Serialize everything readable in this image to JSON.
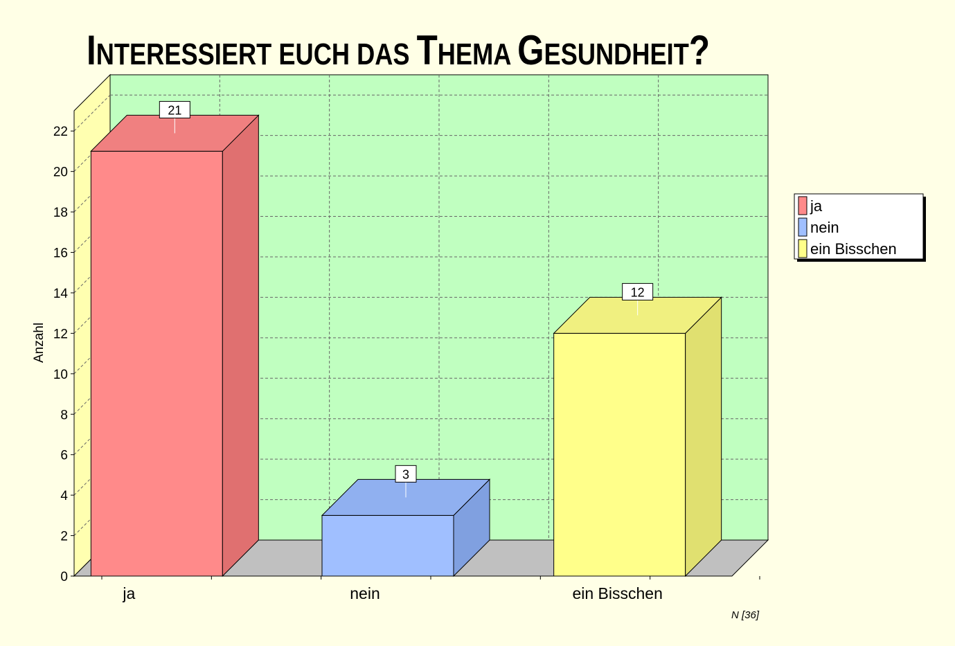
{
  "chart_data": {
    "type": "bar",
    "title": "Interessiert euch das Thema Gesundheit?",
    "categories": [
      "ja",
      "nein",
      "ein Bisschen"
    ],
    "values": [
      21,
      3,
      12
    ],
    "colors": [
      "#ff8a8a",
      "#a0bfff",
      "#ffff8a"
    ],
    "side_colors": [
      "#e07070",
      "#80a0e0",
      "#e0e070"
    ],
    "top_colors": [
      "#f08080",
      "#90b0f0",
      "#f0f080"
    ],
    "ylabel": "Anzahl",
    "xlabel": "",
    "ylim": [
      0,
      23
    ],
    "yticks": [
      0,
      2,
      4,
      6,
      8,
      10,
      12,
      14,
      16,
      18,
      20,
      22
    ],
    "grid": true,
    "legend_position": "right",
    "legend": [
      "ja",
      "nein",
      "ein Bisschen"
    ],
    "note": "N [36]",
    "back_wall_color": "#c0ffc0",
    "side_wall_color": "#ffffb0",
    "floor_color": "#c0c0c0"
  }
}
